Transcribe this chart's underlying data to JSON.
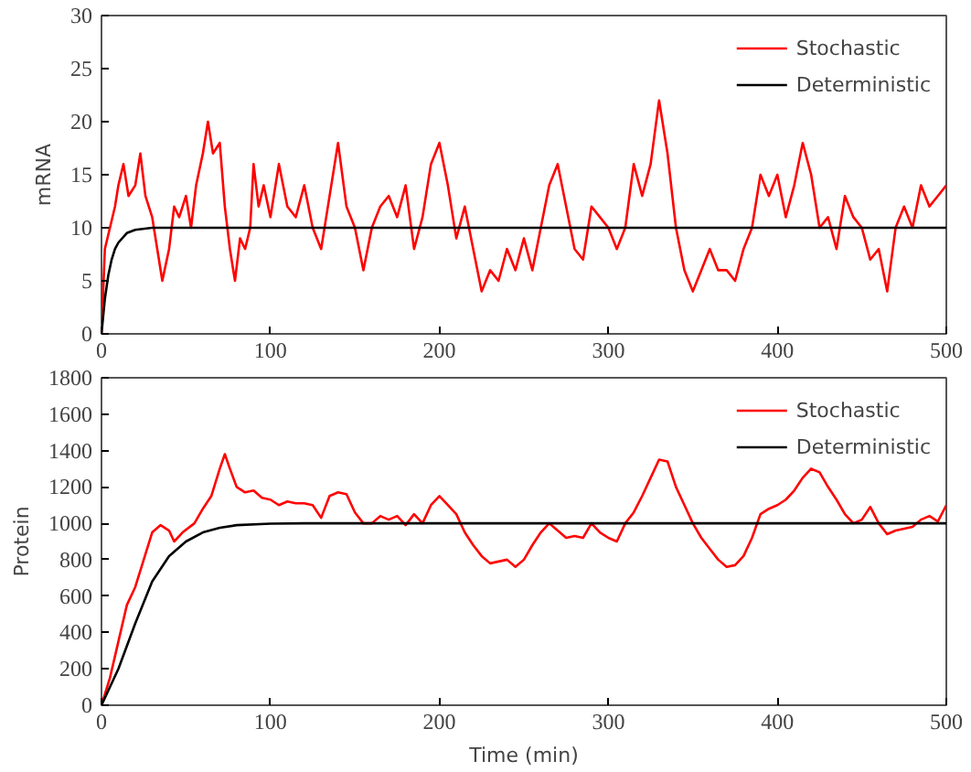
{
  "chart_data": [
    {
      "type": "line",
      "ylabel": "mRNA",
      "xlim": [
        0,
        500
      ],
      "ylim": [
        0,
        30
      ],
      "xticks": [
        0,
        100,
        200,
        300,
        400,
        500
      ],
      "yticks": [
        0,
        5,
        10,
        15,
        20,
        25,
        30
      ],
      "grid": false,
      "legend": "top right",
      "marker": "none",
      "line_style": "solid",
      "series": [
        {
          "name": "Stochastic",
          "color": "#ff0000",
          "x": [
            0,
            2,
            5,
            8,
            10,
            13,
            16,
            20,
            23,
            26,
            30,
            33,
            36,
            40,
            43,
            46,
            50,
            53,
            56,
            60,
            63,
            66,
            70,
            73,
            76,
            79,
            82,
            85,
            88,
            90,
            93,
            96,
            100,
            105,
            110,
            115,
            120,
            125,
            130,
            133,
            140,
            145,
            150,
            155,
            160,
            165,
            170,
            175,
            180,
            185,
            190,
            195,
            200,
            205,
            210,
            215,
            220,
            225,
            230,
            235,
            240,
            245,
            250,
            255,
            260,
            265,
            270,
            275,
            280,
            285,
            290,
            295,
            300,
            305,
            310,
            315,
            320,
            325,
            330,
            335,
            340,
            345,
            350,
            355,
            360,
            365,
            370,
            375,
            380,
            385,
            390,
            395,
            400,
            405,
            410,
            415,
            420,
            425,
            430,
            435,
            440,
            445,
            450,
            455,
            460,
            465,
            470,
            475,
            480,
            485,
            490,
            495,
            500
          ],
          "values": [
            0,
            8,
            10,
            12,
            14,
            16,
            13,
            14,
            17,
            13,
            11,
            8,
            5,
            8,
            12,
            11,
            13,
            10,
            14,
            17,
            20,
            17,
            18,
            12,
            8,
            5,
            9,
            8,
            10,
            16,
            12,
            14,
            11,
            16,
            12,
            11,
            14,
            10,
            8,
            11,
            18,
            12,
            10,
            6,
            10,
            12,
            13,
            11,
            14,
            8,
            11,
            16,
            18,
            14,
            9,
            12,
            8,
            4,
            6,
            5,
            8,
            6,
            9,
            6,
            10,
            14,
            16,
            12,
            8,
            7,
            12,
            11,
            10,
            8,
            10,
            16,
            13,
            16,
            22,
            17,
            10,
            6,
            4,
            6,
            8,
            6,
            6,
            5,
            8,
            10,
            15,
            13,
            15,
            11,
            14,
            18,
            15,
            10,
            11,
            8,
            13,
            11,
            10,
            7,
            8,
            4,
            10,
            12,
            10,
            14,
            12,
            13,
            14
          ]
        },
        {
          "name": "Deterministic",
          "color": "#000000",
          "x": [
            0,
            2,
            4,
            6,
            8,
            10,
            15,
            20,
            30,
            500
          ],
          "values": [
            0,
            3.3,
            5.5,
            7,
            8,
            8.6,
            9.5,
            9.8,
            10,
            10
          ]
        }
      ]
    },
    {
      "type": "line",
      "ylabel": "Protein",
      "xlabel": "Time (min)",
      "xlim": [
        0,
        500
      ],
      "ylim": [
        0,
        1800
      ],
      "xticks": [
        0,
        100,
        200,
        300,
        400,
        500
      ],
      "yticks": [
        0,
        200,
        400,
        600,
        800,
        1000,
        1200,
        1400,
        1600,
        1800
      ],
      "grid": false,
      "legend": "top right",
      "marker": "none",
      "line_style": "solid",
      "series": [
        {
          "name": "Stochastic",
          "color": "#ff0000",
          "x": [
            0,
            5,
            10,
            15,
            20,
            25,
            30,
            35,
            40,
            43,
            48,
            55,
            60,
            65,
            70,
            73,
            76,
            80,
            85,
            90,
            95,
            100,
            105,
            110,
            115,
            120,
            125,
            130,
            135,
            140,
            145,
            150,
            155,
            160,
            165,
            170,
            175,
            180,
            185,
            190,
            195,
            200,
            205,
            210,
            215,
            220,
            225,
            230,
            235,
            240,
            245,
            250,
            255,
            260,
            265,
            270,
            275,
            280,
            285,
            290,
            295,
            300,
            305,
            310,
            315,
            320,
            325,
            330,
            335,
            340,
            345,
            350,
            355,
            360,
            365,
            370,
            375,
            380,
            385,
            390,
            395,
            400,
            405,
            410,
            415,
            420,
            425,
            430,
            435,
            440,
            445,
            450,
            455,
            460,
            465,
            470,
            475,
            480,
            485,
            490,
            495,
            500
          ],
          "values": [
            0,
            150,
            350,
            550,
            650,
            800,
            950,
            990,
            960,
            900,
            950,
            1000,
            1080,
            1150,
            1300,
            1380,
            1300,
            1200,
            1170,
            1180,
            1140,
            1130,
            1100,
            1120,
            1110,
            1110,
            1100,
            1030,
            1150,
            1170,
            1160,
            1060,
            1000,
            1000,
            1040,
            1020,
            1040,
            990,
            1050,
            1000,
            1100,
            1150,
            1100,
            1050,
            950,
            880,
            820,
            780,
            790,
            800,
            760,
            800,
            880,
            950,
            1000,
            960,
            920,
            930,
            920,
            1000,
            950,
            920,
            900,
            1000,
            1060,
            1150,
            1250,
            1350,
            1340,
            1200,
            1100,
            1000,
            920,
            860,
            800,
            760,
            770,
            820,
            920,
            1050,
            1080,
            1100,
            1130,
            1180,
            1250,
            1300,
            1280,
            1200,
            1130,
            1050,
            1000,
            1020,
            1090,
            1000,
            940,
            960,
            970,
            980,
            1020,
            1040,
            1010,
            1100
          ]
        },
        {
          "name": "Deterministic",
          "color": "#000000",
          "x": [
            0,
            10,
            20,
            30,
            40,
            50,
            60,
            70,
            80,
            100,
            120,
            500
          ],
          "values": [
            0,
            200,
            450,
            680,
            820,
            900,
            950,
            975,
            990,
            998,
            1000,
            1000
          ]
        }
      ]
    }
  ]
}
